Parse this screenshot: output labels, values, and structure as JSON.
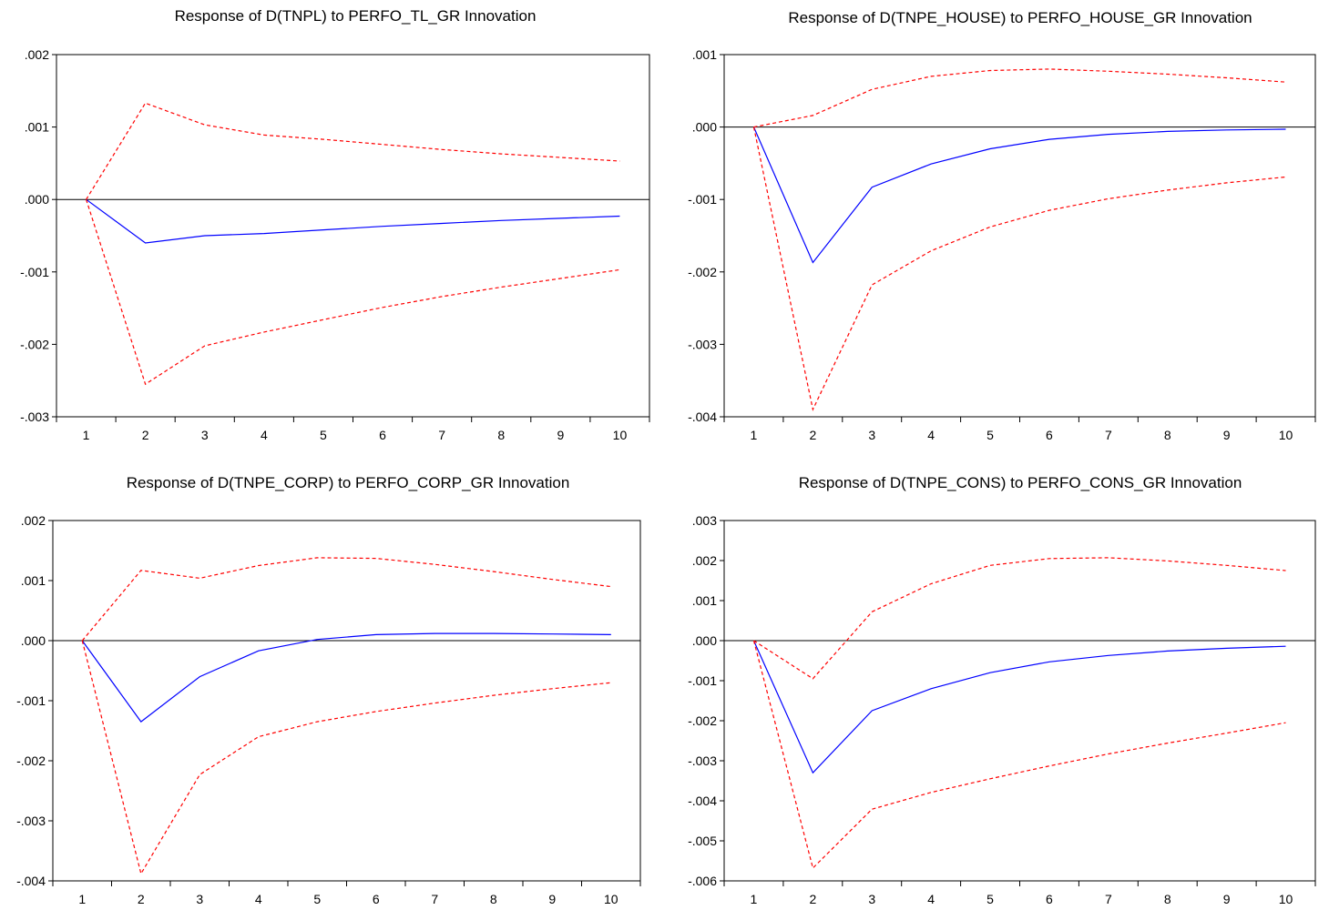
{
  "chart_data": [
    {
      "type": "line",
      "title": "Response of D(TNPL) to PERFO_TL_GR Innovation",
      "x": [
        1,
        2,
        3,
        4,
        5,
        6,
        7,
        8,
        9,
        10
      ],
      "xlim": [
        0.5,
        10.5
      ],
      "ylim": [
        -0.003,
        0.002
      ],
      "yticks": [
        ".002",
        ".001",
        ".000",
        "-.001",
        "-.002",
        "-.003"
      ],
      "ytick_values": [
        0.002,
        0.001,
        0.0,
        -0.001,
        -0.002,
        -0.003
      ],
      "xticks": [
        "1",
        "2",
        "3",
        "4",
        "5",
        "6",
        "7",
        "8",
        "9",
        "10"
      ],
      "series": [
        {
          "role": "response",
          "color": "#0000ff",
          "style": "solid",
          "values": [
            0.0,
            -0.0006,
            -0.0005,
            -0.00047,
            -0.00042,
            -0.00037,
            -0.00033,
            -0.00029,
            -0.00026,
            -0.00023
          ]
        },
        {
          "role": "upper",
          "color": "#ff0000",
          "style": "dashed",
          "values": [
            0.0,
            0.00133,
            0.00103,
            0.00089,
            0.00083,
            0.00076,
            0.00069,
            0.00063,
            0.00058,
            0.00053
          ]
        },
        {
          "role": "lower",
          "color": "#ff0000",
          "style": "dashed",
          "values": [
            0.0,
            -0.00255,
            -0.00202,
            -0.00183,
            -0.00166,
            -0.00149,
            -0.00134,
            -0.00121,
            -0.00109,
            -0.00097
          ]
        }
      ]
    },
    {
      "type": "line",
      "title": "Response of D(TNPE_HOUSE) to PERFO_HOUSE_GR Innovation",
      "x": [
        1,
        2,
        3,
        4,
        5,
        6,
        7,
        8,
        9,
        10
      ],
      "xlim": [
        0.5,
        10.5
      ],
      "ylim": [
        -0.004,
        0.001
      ],
      "yticks": [
        ".001",
        ".000",
        "-.001",
        "-.002",
        "-.003",
        "-.004"
      ],
      "ytick_values": [
        0.001,
        0.0,
        -0.001,
        -0.002,
        -0.003,
        -0.004
      ],
      "xticks": [
        "1",
        "2",
        "3",
        "4",
        "5",
        "6",
        "7",
        "8",
        "9",
        "10"
      ],
      "series": [
        {
          "role": "response",
          "color": "#0000ff",
          "style": "solid",
          "values": [
            0.0,
            -0.00187,
            -0.00083,
            -0.00051,
            -0.0003,
            -0.00017,
            -0.0001,
            -6e-05,
            -4e-05,
            -3e-05
          ]
        },
        {
          "role": "upper",
          "color": "#ff0000",
          "style": "dashed",
          "values": [
            0.0,
            0.00016,
            0.00052,
            0.0007,
            0.00078,
            0.0008,
            0.00077,
            0.00073,
            0.00068,
            0.00062
          ]
        },
        {
          "role": "lower",
          "color": "#ff0000",
          "style": "dashed",
          "values": [
            0.0,
            -0.0039,
            -0.00218,
            -0.00171,
            -0.00138,
            -0.00115,
            -0.00099,
            -0.00087,
            -0.00077,
            -0.00069
          ]
        }
      ]
    },
    {
      "type": "line",
      "title": "Response of D(TNPE_CORP) to PERFO_CORP_GR Innovation",
      "x": [
        1,
        2,
        3,
        4,
        5,
        6,
        7,
        8,
        9,
        10
      ],
      "xlim": [
        0.5,
        10.5
      ],
      "ylim": [
        -0.004,
        0.002
      ],
      "yticks": [
        ".002",
        ".001",
        ".000",
        "-.001",
        "-.002",
        "-.003",
        "-.004"
      ],
      "ytick_values": [
        0.002,
        0.001,
        0.0,
        -0.001,
        -0.002,
        -0.003,
        -0.004
      ],
      "xticks": [
        "1",
        "2",
        "3",
        "4",
        "5",
        "6",
        "7",
        "8",
        "9",
        "10"
      ],
      "series": [
        {
          "role": "response",
          "color": "#0000ff",
          "style": "solid",
          "values": [
            0.0,
            -0.00135,
            -0.0006,
            -0.00017,
            2e-05,
            0.0001,
            0.00012,
            0.00012,
            0.00011,
            0.0001
          ]
        },
        {
          "role": "upper",
          "color": "#ff0000",
          "style": "dashed",
          "values": [
            0.0,
            0.00117,
            0.00104,
            0.00125,
            0.00138,
            0.00137,
            0.00127,
            0.00115,
            0.00102,
            0.0009
          ]
        },
        {
          "role": "lower",
          "color": "#ff0000",
          "style": "dashed",
          "values": [
            0.0,
            -0.00388,
            -0.00223,
            -0.0016,
            -0.00135,
            -0.00118,
            -0.00104,
            -0.00091,
            -0.0008,
            -0.0007
          ]
        }
      ]
    },
    {
      "type": "line",
      "title": "Response of D(TNPE_CONS) to  PERFO_CONS_GR Innovation",
      "x": [
        1,
        2,
        3,
        4,
        5,
        6,
        7,
        8,
        9,
        10
      ],
      "xlim": [
        0.5,
        10.5
      ],
      "ylim": [
        -0.006,
        0.003
      ],
      "yticks": [
        ".003",
        ".002",
        ".001",
        ".000",
        "-.001",
        "-.002",
        "-.003",
        "-.004",
        "-.005",
        "-.006"
      ],
      "ytick_values": [
        0.003,
        0.002,
        0.001,
        0.0,
        -0.001,
        -0.002,
        -0.003,
        -0.004,
        -0.005,
        -0.006
      ],
      "xticks": [
        "1",
        "2",
        "3",
        "4",
        "5",
        "6",
        "7",
        "8",
        "9",
        "10"
      ],
      "series": [
        {
          "role": "response",
          "color": "#0000ff",
          "style": "solid",
          "values": [
            0.0,
            -0.0033,
            -0.00175,
            -0.0012,
            -0.0008,
            -0.00053,
            -0.00037,
            -0.00026,
            -0.00019,
            -0.00014
          ]
        },
        {
          "role": "upper",
          "color": "#ff0000",
          "style": "dashed",
          "values": [
            0.0,
            -0.00095,
            0.00072,
            0.00142,
            0.00188,
            0.00205,
            0.00207,
            0.00199,
            0.00188,
            0.00175
          ]
        },
        {
          "role": "lower",
          "color": "#ff0000",
          "style": "dashed",
          "values": [
            0.0,
            -0.00568,
            -0.00421,
            -0.00379,
            -0.00345,
            -0.00313,
            -0.00283,
            -0.00256,
            -0.00231,
            -0.00205
          ]
        }
      ]
    }
  ]
}
